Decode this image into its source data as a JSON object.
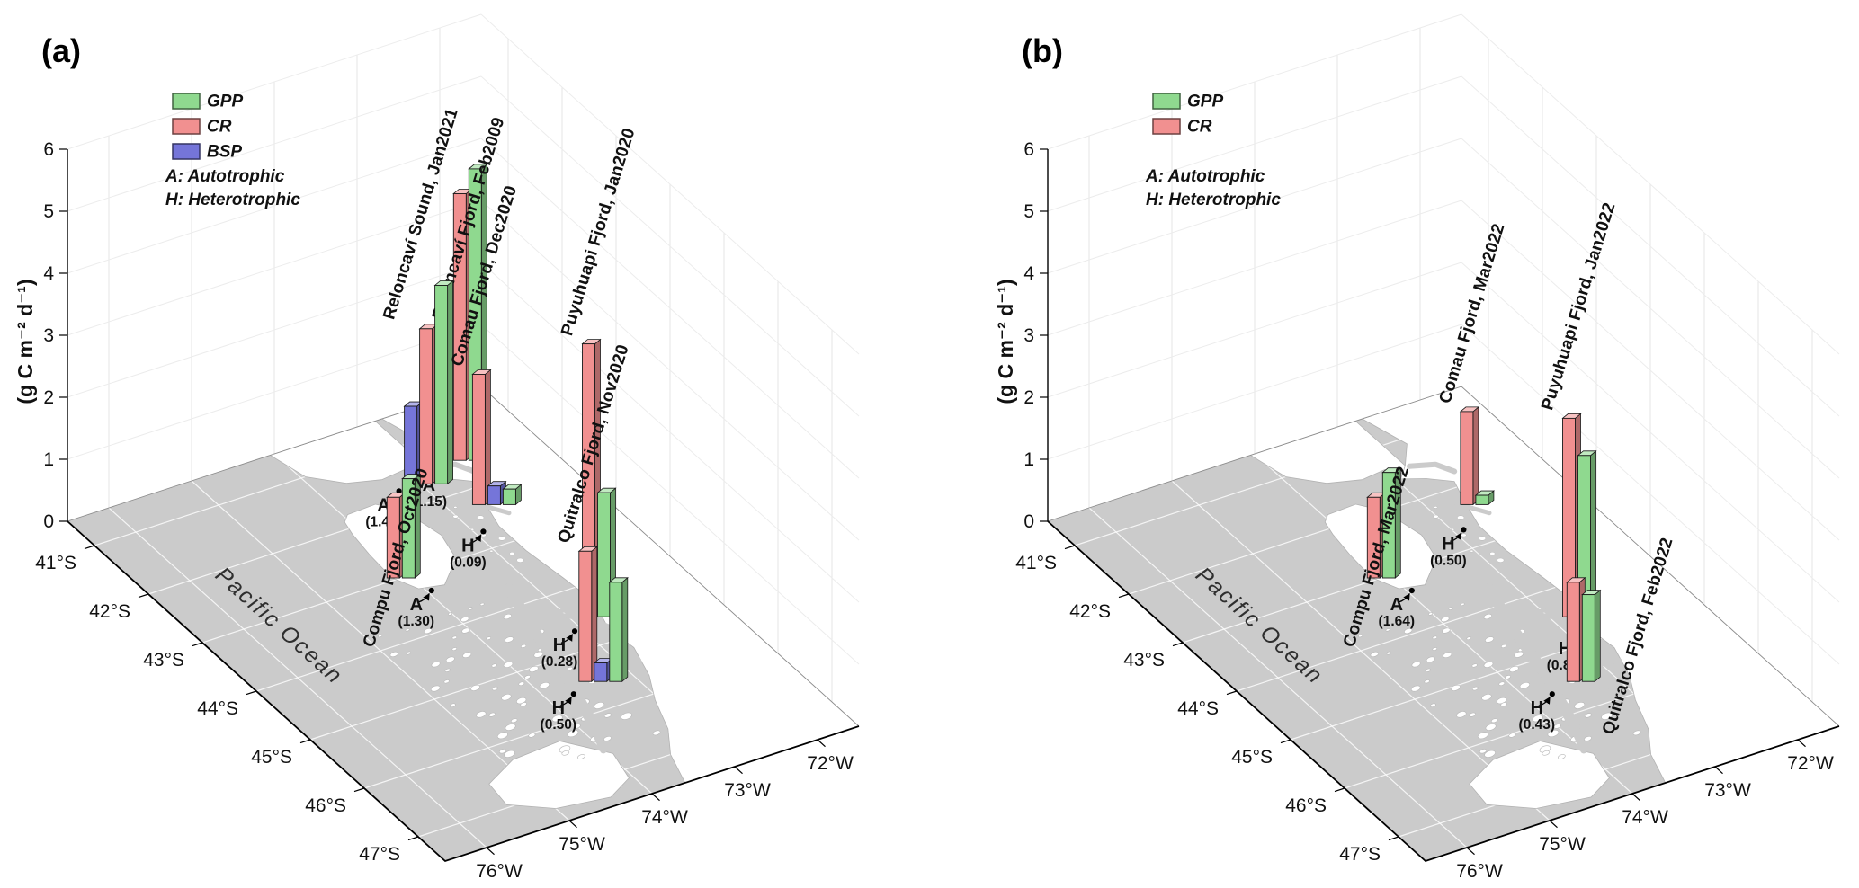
{
  "figure": {
    "map_label": "Pacific Ocean",
    "trophic_notes": [
      "A: Autotrophic",
      "H: Heterotrophic"
    ],
    "series_colors": {
      "GPP": "#8FD98F",
      "CR": "#F19090",
      "BSP": "#7575D9"
    },
    "axis": {
      "z_label": "(g C m⁻² d⁻¹)",
      "z_ticks": [
        "0",
        "1",
        "2",
        "3",
        "4",
        "5",
        "6"
      ],
      "lat_ticks": [
        "41°S",
        "42°S",
        "43°S",
        "44°S",
        "45°S",
        "46°S",
        "47°S"
      ],
      "lon_ticks": [
        "76°W",
        "75°W",
        "74°W",
        "73°W",
        "72°W"
      ]
    }
  },
  "chart_data": [
    {
      "type": "bar",
      "projection": "3d-map-bars",
      "panel_label": "(a)",
      "zlabel": "(g C m⁻² d⁻¹)",
      "zlim": [
        0,
        6
      ],
      "grid": true,
      "legend_position": "top-left",
      "lat_axis_s": {
        "min": 40.5,
        "max": 47.5,
        "ticks": [
          41,
          42,
          43,
          44,
          45,
          46,
          47
        ]
      },
      "lon_axis_w": {
        "min": 71.5,
        "max": 76.5,
        "ticks": [
          76,
          75,
          74,
          73,
          72
        ]
      },
      "legend": [
        "GPP",
        "CR",
        "BSP"
      ],
      "sites": [
        {
          "name": "Reloncaví Sound, Jan2021",
          "lat_s": 41.7,
          "lon_w": 72.95,
          "trophic": "A",
          "ncp": "1.40",
          "bars": [
            [
              "BSP",
              1.25
            ],
            [
              "CR",
              2.5
            ],
            [
              "GPP",
              3.2
            ]
          ],
          "ann": [
            -30,
            8
          ]
        },
        {
          "name": "Reloncaví Fjord, Feb2009",
          "lat_s": 41.55,
          "lon_w": 72.35,
          "trophic": "A",
          "ncp": "1.15",
          "bars": [
            [
              "CR",
              4.3
            ],
            [
              "GPP",
              4.7
            ]
          ],
          "ann": [
            -26,
            12
          ]
        },
        {
          "name": "Comau Fjord, Dec2020",
          "lat_s": 42.35,
          "lon_w": 72.55,
          "trophic": "H",
          "ncp": "0.09",
          "bars": [
            [
              "CR",
              2.1
            ],
            [
              "BSP",
              0.3
            ],
            [
              "GPP",
              0.25
            ]
          ],
          "ann": [
            -12,
            30
          ]
        },
        {
          "name": "Compu Fjord, Oct2020",
          "lat_s": 43.0,
          "lon_w": 74.1,
          "trophic": "A",
          "ncp": "1.30",
          "bars": [
            [
              "CR",
              1.3
            ],
            [
              "GPP",
              1.6
            ]
          ],
          "ann": [
            34,
            14
          ],
          "label_pos": "base"
        },
        {
          "name": "Puyuhuapi Fjord, Jan2020",
          "lat_s": 44.55,
          "lon_w": 72.75,
          "trophic": "H",
          "ncp": "0.28",
          "bars": [
            [
              "CR",
              4.4
            ],
            [
              "GPP",
              2.0
            ]
          ],
          "ann": [
            -24,
            16
          ]
        },
        {
          "name": "Quitralco Fjord, Nov2020",
          "lat_s": 45.55,
          "lon_w": 73.35,
          "trophic": "H",
          "ncp": "0.50",
          "bars": [
            [
              "CR",
              2.1
            ],
            [
              "BSP",
              0.3
            ],
            [
              "GPP",
              1.6
            ]
          ],
          "ann": [
            -30,
            14
          ]
        }
      ]
    },
    {
      "type": "bar",
      "projection": "3d-map-bars",
      "panel_label": "(b)",
      "zlabel": "(g C m⁻² d⁻¹)",
      "zlim": [
        0,
        6
      ],
      "grid": true,
      "legend_position": "top-left",
      "lat_axis_s": {
        "min": 40.5,
        "max": 47.5,
        "ticks": [
          41,
          42,
          43,
          44,
          45,
          46,
          47
        ]
      },
      "lon_axis_w": {
        "min": 71.5,
        "max": 76.5,
        "ticks": [
          76,
          75,
          74,
          73,
          72
        ]
      },
      "legend": [
        "GPP",
        "CR"
      ],
      "sites": [
        {
          "name": "Comau Fjord, Mar2022",
          "lat_s": 42.35,
          "lon_w": 72.55,
          "trophic": "H",
          "ncp": "0.50",
          "bars": [
            [
              "CR",
              1.5
            ],
            [
              "GPP",
              0.15
            ]
          ],
          "ann": [
            -12,
            28
          ]
        },
        {
          "name": "Compu Fjord, Mar2022",
          "lat_s": 43.0,
          "lon_w": 74.1,
          "trophic": "A",
          "ncp": "1.64",
          "bars": [
            [
              "CR",
              1.3
            ],
            [
              "GPP",
              1.7
            ]
          ],
          "ann": [
            34,
            14
          ],
          "label_pos": "base"
        },
        {
          "name": "Puyuhuapi Fjord, Jan2022",
          "lat_s": 44.55,
          "lon_w": 72.75,
          "trophic": "H",
          "ncp": "0.85",
          "bars": [
            [
              "CR",
              3.2
            ],
            [
              "GPP",
              2.6
            ]
          ],
          "ann": [
            4,
            20
          ]
        },
        {
          "name": "Quitralco Fjord, Feb2022",
          "lat_s": 45.55,
          "lon_w": 73.35,
          "trophic": "H",
          "ncp": "0.43",
          "bars": [
            [
              "CR",
              1.6
            ],
            [
              "GPP",
              1.4
            ]
          ],
          "ann": [
            -32,
            14
          ],
          "label_pos": "base-right"
        }
      ]
    }
  ]
}
